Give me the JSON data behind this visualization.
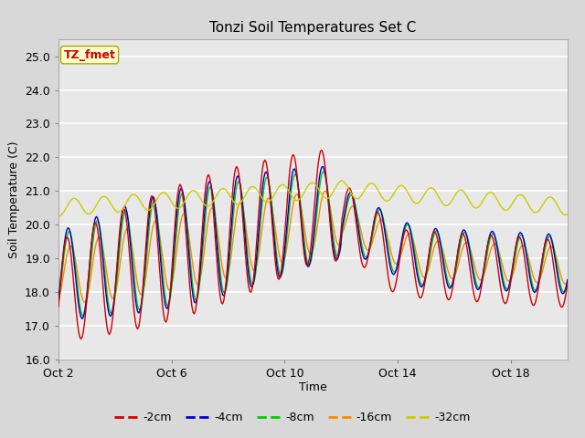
{
  "title": "Tonzi Soil Temperatures Set C",
  "xlabel": "Time",
  "ylabel": "Soil Temperature (C)",
  "ylim": [
    16.0,
    25.5
  ],
  "yticks": [
    16.0,
    17.0,
    18.0,
    19.0,
    20.0,
    21.0,
    22.0,
    23.0,
    24.0,
    25.0
  ],
  "xtick_labels": [
    "Oct 2",
    "Oct 6",
    "Oct 10",
    "Oct 14",
    "Oct 18"
  ],
  "xtick_pos": [
    0,
    4,
    8,
    12,
    16
  ],
  "xlim": [
    0,
    18
  ],
  "bg_color": "#d8d8d8",
  "plot_bg_color": "#e8e8e8",
  "grid_color": "#ffffff",
  "annotation_text": "TZ_fmet",
  "annotation_color": "#cc0000",
  "annotation_bg": "#ffffcc",
  "annotation_border": "#aaaa00",
  "colors": {
    "-2cm": "#cc0000",
    "-4cm": "#0000cc",
    "-8cm": "#00cc00",
    "-16cm": "#ff8800",
    "-32cm": "#cccc00"
  },
  "legend_labels": [
    "-2cm",
    "-4cm",
    "-8cm",
    "-16cm",
    "-32cm"
  ]
}
